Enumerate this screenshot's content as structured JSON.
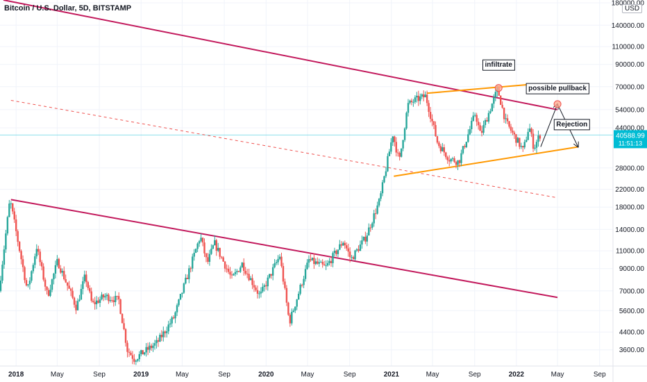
{
  "header": {
    "symbol": "Bitcoin / U.S. Dollar, 5D, BITSTAMP",
    "currency_badge": "USD"
  },
  "price_label": {
    "price": "40588.99",
    "countdown": "11:51:13",
    "color": "#00bcd4"
  },
  "colors": {
    "up": "#26a69a",
    "down": "#ef5350",
    "channel": "#c2185b",
    "midline": "#ef5350",
    "triangle": "#ff9800",
    "marker": "#ffab91",
    "grid": "#f0f3fa",
    "axis_text": "#131722"
  },
  "chart_data": {
    "type": "candlestick",
    "scale": "log",
    "title": "Bitcoin / U.S. Dollar, 5D, BITSTAMP",
    "x_range": [
      "2017-11-15",
      "2022-10-10"
    ],
    "y_range": [
      3000,
      186000
    ],
    "x_ticks": [
      {
        "label": "2018",
        "date": "2018-01-01",
        "bold": true
      },
      {
        "label": "May",
        "date": "2018-05-01"
      },
      {
        "label": "Sep",
        "date": "2018-09-01"
      },
      {
        "label": "2019",
        "date": "2019-01-01",
        "bold": true
      },
      {
        "label": "May",
        "date": "2019-05-01"
      },
      {
        "label": "Sep",
        "date": "2019-09-01"
      },
      {
        "label": "2020",
        "date": "2020-01-01",
        "bold": true
      },
      {
        "label": "May",
        "date": "2020-05-01"
      },
      {
        "label": "Sep",
        "date": "2020-09-01"
      },
      {
        "label": "2021",
        "date": "2021-01-01",
        "bold": true
      },
      {
        "label": "May",
        "date": "2021-05-01"
      },
      {
        "label": "Sep",
        "date": "2021-09-01"
      },
      {
        "label": "2022",
        "date": "2022-01-01",
        "bold": true
      },
      {
        "label": "May",
        "date": "2022-05-01"
      },
      {
        "label": "Sep",
        "date": "2022-09-01"
      }
    ],
    "y_ticks": [
      {
        "label": "180000.00",
        "value": 180000
      },
      {
        "label": "140000.00",
        "value": 140000
      },
      {
        "label": "110000.00",
        "value": 110000
      },
      {
        "label": "90000.00",
        "value": 90000
      },
      {
        "label": "70000.00",
        "value": 70000
      },
      {
        "label": "54000.00",
        "value": 54000
      },
      {
        "label": "44000.00",
        "value": 44000
      },
      {
        "label": "28000.00",
        "value": 28000
      },
      {
        "label": "22000.00",
        "value": 22000
      },
      {
        "label": "18000.00",
        "value": 18000
      },
      {
        "label": "14000.00",
        "value": 14000
      },
      {
        "label": "11000.00",
        "value": 11000
      },
      {
        "label": "9000.00",
        "value": 9000
      },
      {
        "label": "7000.00",
        "value": 7000
      },
      {
        "label": "5600.00",
        "value": 5600
      },
      {
        "label": "4400.00",
        "value": 4400
      },
      {
        "label": "3600.00",
        "value": 3600
      }
    ],
    "last_price": 40588.99,
    "price_path": [
      [
        "2017-11-15",
        7000
      ],
      [
        "2017-12-17",
        19600
      ],
      [
        "2018-02-06",
        7000
      ],
      [
        "2018-03-05",
        11500
      ],
      [
        "2018-04-06",
        6600
      ],
      [
        "2018-05-05",
        9800
      ],
      [
        "2018-06-29",
        5800
      ],
      [
        "2018-07-25",
        8300
      ],
      [
        "2018-08-14",
        6000
      ],
      [
        "2018-09-20",
        6600
      ],
      [
        "2018-10-31",
        6300
      ],
      [
        "2018-11-25",
        3600
      ],
      [
        "2018-12-15",
        3250
      ],
      [
        "2019-02-20",
        3900
      ],
      [
        "2019-04-10",
        5200
      ],
      [
        "2019-06-26",
        13000
      ],
      [
        "2019-07-16",
        9500
      ],
      [
        "2019-08-06",
        12000
      ],
      [
        "2019-09-26",
        8000
      ],
      [
        "2019-10-26",
        9500
      ],
      [
        "2019-12-17",
        6600
      ],
      [
        "2020-02-13",
        10400
      ],
      [
        "2020-03-12",
        4900
      ],
      [
        "2020-05-08",
        9900
      ],
      [
        "2020-06-26",
        9100
      ],
      [
        "2020-08-17",
        12300
      ],
      [
        "2020-09-08",
        10000
      ],
      [
        "2020-10-21",
        12800
      ],
      [
        "2020-12-01",
        19500
      ],
      [
        "2021-01-08",
        41000
      ],
      [
        "2021-01-27",
        30000
      ],
      [
        "2021-02-21",
        57000
      ],
      [
        "2021-03-13",
        60000
      ],
      [
        "2021-04-14",
        63000
      ],
      [
        "2021-05-19",
        37000
      ],
      [
        "2021-06-22",
        31000
      ],
      [
        "2021-07-20",
        30000
      ],
      [
        "2021-09-06",
        52000
      ],
      [
        "2021-09-21",
        40500
      ],
      [
        "2021-11-10",
        68000
      ],
      [
        "2021-12-04",
        47000
      ],
      [
        "2022-01-24",
        34000
      ],
      [
        "2022-02-10",
        45000
      ],
      [
        "2022-02-24",
        35000
      ],
      [
        "2022-03-13",
        40588.99
      ]
    ],
    "trendlines": [
      {
        "name": "upper-channel",
        "style": "solid",
        "color": "#c2185b",
        "points": [
          [
            "2017-11-25",
            186000
          ],
          [
            "2022-05-01",
            54000
          ]
        ]
      },
      {
        "name": "lower-channel",
        "style": "solid",
        "color": "#c2185b",
        "points": [
          [
            "2017-12-17",
            19600
          ],
          [
            "2022-05-01",
            6500
          ]
        ]
      },
      {
        "name": "channel-midline",
        "style": "dashed",
        "color": "#ef5350",
        "points": [
          [
            "2017-12-17",
            60000
          ],
          [
            "2022-05-01",
            20000
          ]
        ]
      },
      {
        "name": "triangle-top",
        "style": "solid",
        "color": "#ff9800",
        "points": [
          [
            "2021-04-14",
            65000
          ],
          [
            "2022-02-20",
            72000
          ]
        ]
      },
      {
        "name": "triangle-bottom",
        "style": "solid",
        "color": "#ff9800",
        "points": [
          [
            "2021-01-08",
            25500
          ],
          [
            "2022-06-30",
            35500
          ]
        ]
      }
    ],
    "projection": [
      [
        "2022-03-13",
        35500
      ],
      [
        "2022-05-01",
        57500
      ],
      [
        "2022-06-30",
        35500
      ]
    ],
    "annotations": [
      {
        "text": "infiltrate",
        "date": "2021-11-10",
        "value": 90000
      },
      {
        "text": "possible pullback",
        "date": "2022-05-01",
        "value": 69000
      },
      {
        "text": "Rejection",
        "date": "2022-06-12",
        "value": 46000
      }
    ],
    "markers": [
      {
        "name": "top-touch",
        "date": "2021-11-10",
        "value": 69000
      },
      {
        "name": "pullback-target",
        "date": "2022-05-01",
        "value": 57500
      }
    ]
  }
}
